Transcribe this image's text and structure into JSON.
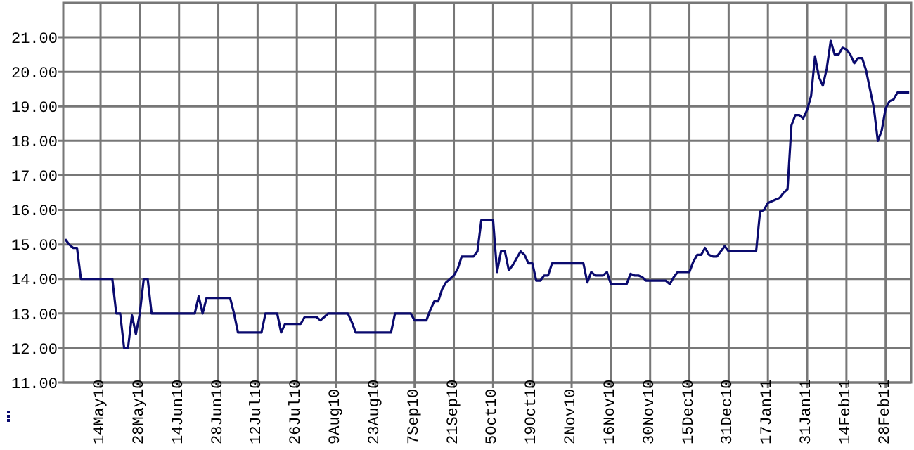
{
  "chart_data": {
    "type": "line",
    "categories": [
      null,
      null,
      null,
      null,
      null,
      null,
      null,
      null,
      null,
      "14May10",
      null,
      null,
      null,
      null,
      null,
      null,
      null,
      null,
      null,
      "28May10",
      null,
      null,
      null,
      null,
      null,
      null,
      null,
      null,
      null,
      "14Jun10",
      null,
      null,
      null,
      null,
      null,
      null,
      null,
      null,
      null,
      "28Jun10",
      null,
      null,
      null,
      null,
      null,
      null,
      null,
      null,
      null,
      "12Jul10",
      null,
      null,
      null,
      null,
      null,
      null,
      null,
      null,
      null,
      "26Jul10",
      null,
      null,
      null,
      null,
      null,
      null,
      null,
      null,
      null,
      "9Aug10",
      null,
      null,
      null,
      null,
      null,
      null,
      null,
      null,
      null,
      "23Aug10",
      null,
      null,
      null,
      null,
      null,
      null,
      null,
      null,
      null,
      "7Sep10",
      null,
      null,
      null,
      null,
      null,
      null,
      null,
      null,
      null,
      "21Sep10",
      null,
      null,
      null,
      null,
      null,
      null,
      null,
      null,
      null,
      "5Oct10",
      null,
      null,
      null,
      null,
      null,
      null,
      null,
      null,
      null,
      "19Oct10",
      null,
      null,
      null,
      null,
      null,
      null,
      null,
      null,
      null,
      "2Nov10",
      null,
      null,
      null,
      null,
      null,
      null,
      null,
      null,
      null,
      "16Nov10",
      null,
      null,
      null,
      null,
      null,
      null,
      null,
      null,
      null,
      "30Nov10",
      null,
      null,
      null,
      null,
      null,
      null,
      null,
      null,
      null,
      "15Dec10",
      null,
      null,
      null,
      null,
      null,
      null,
      null,
      null,
      null,
      "31Dec10",
      null,
      null,
      null,
      null,
      null,
      null,
      null,
      null,
      null,
      "17Jan11",
      null,
      null,
      null,
      null,
      null,
      null,
      null,
      null,
      null,
      "31Jan11",
      null,
      null,
      null,
      null,
      null,
      null,
      null,
      null,
      null,
      "14Feb11",
      null,
      null,
      null,
      null,
      null,
      null,
      null,
      null,
      null,
      "28Feb11",
      null,
      null,
      null,
      null,
      null,
      null
    ],
    "values": [
      15.15,
      15.0,
      14.9,
      14.9,
      14.0,
      14.0,
      14.0,
      14.0,
      14.0,
      14.0,
      14.0,
      14.0,
      14.0,
      13.0,
      13.0,
      12.0,
      12.0,
      12.95,
      12.4,
      13.0,
      14.0,
      14.0,
      13.0,
      13.0,
      13.0,
      13.0,
      13.0,
      13.0,
      13.0,
      13.0,
      13.0,
      13.0,
      13.0,
      13.0,
      13.5,
      13.0,
      13.45,
      13.45,
      13.45,
      13.45,
      13.45,
      13.45,
      13.45,
      13.0,
      12.45,
      12.45,
      12.45,
      12.45,
      12.45,
      12.45,
      12.45,
      13.0,
      13.0,
      13.0,
      13.0,
      12.45,
      12.7,
      12.7,
      12.7,
      12.7,
      12.7,
      12.9,
      12.9,
      12.9,
      12.9,
      12.8,
      12.9,
      13.0,
      13.0,
      13.0,
      13.0,
      13.0,
      13.0,
      12.75,
      12.45,
      12.45,
      12.45,
      12.45,
      12.45,
      12.45,
      12.45,
      12.45,
      12.45,
      12.45,
      13.0,
      13.0,
      13.0,
      13.0,
      13.0,
      12.8,
      12.8,
      12.8,
      12.8,
      13.1,
      13.35,
      13.35,
      13.7,
      13.9,
      14.0,
      14.1,
      14.3,
      14.65,
      14.65,
      14.65,
      14.65,
      14.8,
      15.7,
      15.7,
      15.7,
      15.7,
      14.2,
      14.8,
      14.8,
      14.25,
      14.4,
      14.6,
      14.8,
      14.7,
      14.45,
      14.45,
      13.95,
      13.95,
      14.1,
      14.1,
      14.45,
      14.45,
      14.45,
      14.45,
      14.45,
      14.45,
      14.45,
      14.45,
      14.45,
      13.9,
      14.2,
      14.1,
      14.1,
      14.1,
      14.2,
      13.85,
      13.85,
      13.85,
      13.85,
      13.85,
      14.15,
      14.1,
      14.1,
      14.05,
      13.95,
      13.95,
      13.95,
      13.95,
      13.95,
      13.95,
      13.85,
      14.05,
      14.2,
      14.2,
      14.2,
      14.2,
      14.5,
      14.7,
      14.7,
      14.9,
      14.7,
      14.65,
      14.65,
      14.8,
      14.95,
      14.8,
      14.8,
      14.8,
      14.8,
      14.8,
      14.8,
      14.8,
      14.8,
      15.95,
      16.0,
      16.2,
      16.25,
      16.3,
      16.35,
      16.5,
      16.6,
      18.45,
      18.75,
      18.75,
      18.65,
      18.9,
      19.3,
      20.45,
      19.85,
      19.6,
      20.1,
      20.9,
      20.5,
      20.5,
      20.7,
      20.65,
      20.5,
      20.25,
      20.4,
      20.4,
      20.05,
      19.5,
      18.95,
      18.0,
      18.3,
      18.95,
      19.15,
      19.2,
      19.4,
      19.4,
      19.4,
      19.4
    ],
    "color": "#0a0a6e",
    "ylim": [
      11,
      22
    ],
    "yticks": [
      {
        "value": 11,
        "label": "11.00"
      },
      {
        "value": 12,
        "label": "12.00"
      },
      {
        "value": 13,
        "label": "13.00"
      },
      {
        "value": 14,
        "label": "14.00"
      },
      {
        "value": 15,
        "label": "15.00"
      },
      {
        "value": 16,
        "label": "16.00"
      },
      {
        "value": 17,
        "label": "17.00"
      },
      {
        "value": 18,
        "label": "18.00"
      },
      {
        "value": 19,
        "label": "19.00"
      },
      {
        "value": 20,
        "label": "20.00"
      },
      {
        "value": 21,
        "label": "21.00"
      }
    ],
    "grid": true,
    "marker": "none",
    "line_style": "solid"
  }
}
